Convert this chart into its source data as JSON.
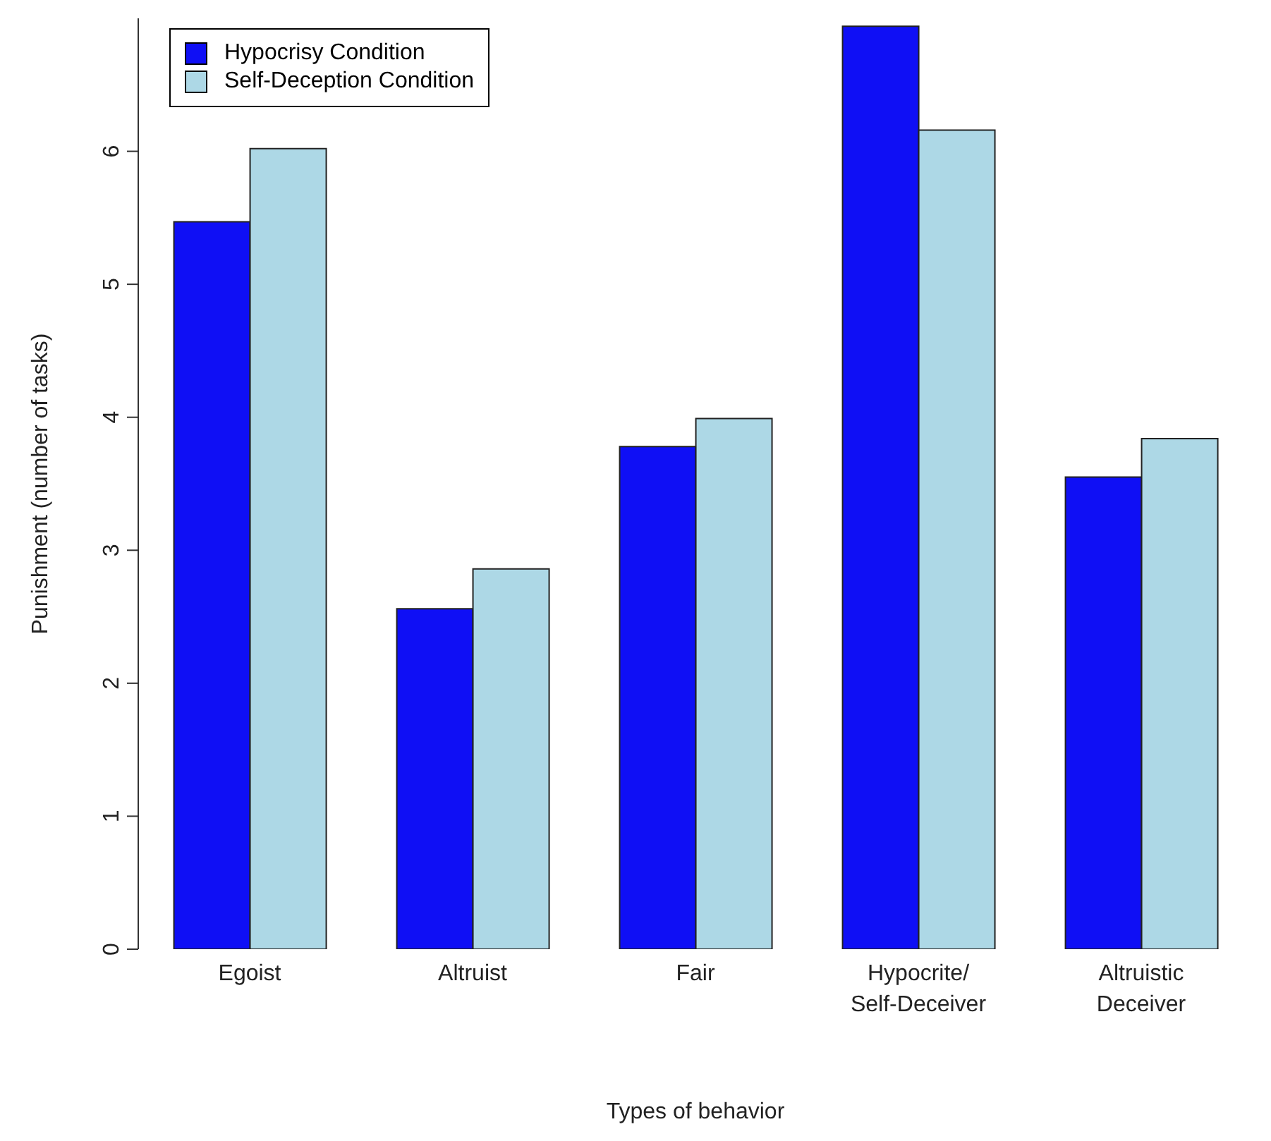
{
  "chart_data": {
    "type": "bar",
    "xlabel": "Types of behavior",
    "ylabel": "Punishment (number of tasks)",
    "categories": [
      "Egoist",
      "Altruist",
      "Fair",
      "Hypocrite/\nSelf-Deceiver",
      "Altruistic\nDeceiver"
    ],
    "series": [
      {
        "name": "Hypocrisy Condition",
        "color": "#0f0ff5",
        "values": [
          5.47,
          2.56,
          3.78,
          6.94,
          3.55
        ]
      },
      {
        "name": "Self-Deception Condition",
        "color": "#add8e6",
        "values": [
          6.02,
          2.86,
          3.99,
          6.16,
          3.84
        ]
      }
    ],
    "ylim": [
      0,
      7
    ],
    "yticks": [
      0,
      1,
      2,
      3,
      4,
      5,
      6
    ],
    "grid": false,
    "legend": "top left"
  }
}
